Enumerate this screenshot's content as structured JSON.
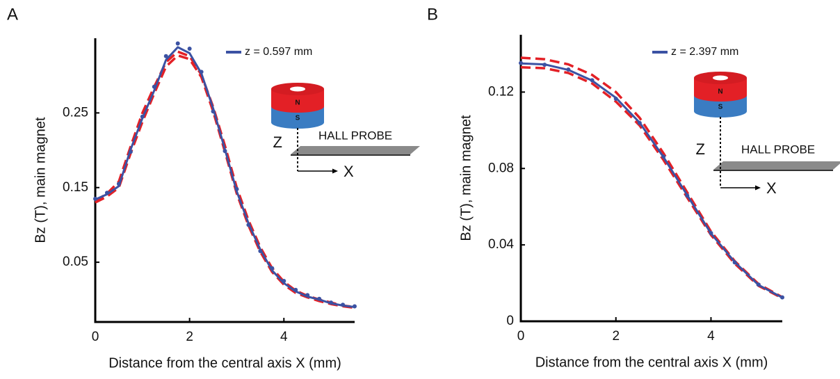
{
  "chart_data": [
    {
      "type": "line",
      "panel": "A",
      "xlabel": "Distance from the central axis X (mm)",
      "ylabel": "Bz (T), main magnet",
      "x": [
        0,
        0.25,
        0.5,
        0.75,
        1,
        1.25,
        1.5,
        1.75,
        2,
        2.25,
        2.5,
        2.75,
        3,
        3.25,
        3.5,
        3.75,
        4,
        4.25,
        4.5,
        4.75,
        5,
        5.25,
        5.5
      ],
      "xlim": [
        0,
        5.5
      ],
      "xticks": [
        0,
        2,
        4
      ],
      "ylim": [
        -0.03,
        0.35
      ],
      "yticks": [
        0.05,
        0.15,
        0.25
      ],
      "legend": "upper right",
      "series": [
        {
          "name": "z = 0.597 mm",
          "color": "#3b52a3",
          "style": "line",
          "values": [
            0.134,
            0.141,
            0.152,
            0.201,
            0.243,
            0.28,
            0.321,
            0.338,
            0.33,
            0.303,
            0.256,
            0.201,
            0.145,
            0.102,
            0.067,
            0.039,
            0.022,
            0.011,
            0.004,
            0,
            -0.005,
            -0.008,
            -0.01
          ]
        },
        {
          "color": "#3b52a3",
          "style": "markers",
          "values": [
            0.135,
            0.143,
            0.155,
            0.198,
            0.245,
            0.285,
            0.326,
            0.343,
            0.336,
            0.305,
            0.252,
            0.199,
            0.148,
            0.1,
            0.065,
            0.042,
            0.025,
            0.013,
            0.006,
            0.001,
            -0.004,
            -0.007,
            -0.009
          ]
        },
        {
          "color": "#e32026",
          "style": "dashed",
          "values": [
            0.132,
            0.142,
            0.158,
            0.205,
            0.25,
            0.285,
            0.318,
            0.332,
            0.326,
            0.301,
            0.258,
            0.206,
            0.15,
            0.106,
            0.07,
            0.042,
            0.024,
            0.012,
            0.005,
            0,
            -0.004,
            -0.008,
            -0.01
          ]
        },
        {
          "color": "#e32026",
          "style": "dashed",
          "values": [
            0.13,
            0.138,
            0.15,
            0.196,
            0.238,
            0.276,
            0.312,
            0.327,
            0.322,
            0.298,
            0.252,
            0.198,
            0.142,
            0.099,
            0.064,
            0.037,
            0.02,
            0.009,
            0.003,
            -0.002,
            -0.006,
            -0.009,
            -0.011
          ]
        }
      ],
      "annotations": {
        "north": "N",
        "south": "S",
        "z_axis": "Z",
        "x_axis": "X",
        "probe": "HALL PROBE"
      }
    },
    {
      "type": "line",
      "panel": "B",
      "xlabel": "Distance from the central axis X (mm)",
      "ylabel": "Bz (T), main magnet",
      "x": [
        0,
        0.5,
        1,
        1.5,
        2,
        2.5,
        3,
        3.5,
        4,
        4.5,
        5,
        5.5
      ],
      "xlim": [
        0,
        5.5
      ],
      "xticks": [
        0,
        2,
        4
      ],
      "ylim": [
        0,
        0.15
      ],
      "yticks": [
        0,
        0.04,
        0.08,
        0.12
      ],
      "legend": "upper right",
      "series": [
        {
          "name": "z = 2.397 mm",
          "color": "#3b52a3",
          "style": "line",
          "values": [
            0.135,
            0.1345,
            0.1316,
            0.126,
            0.117,
            0.104,
            0.086,
            0.066,
            0.046,
            0.031,
            0.019,
            0.0124
          ]
        },
        {
          "color": "#3b52a3",
          "style": "markers",
          "values": [
            0.1352,
            0.1343,
            0.1318,
            0.1262,
            0.1165,
            0.1038,
            0.0862,
            0.0658,
            0.0462,
            0.0308,
            0.0192,
            0.0125
          ]
        },
        {
          "color": "#e32026",
          "style": "dashed",
          "values": [
            0.138,
            0.1372,
            0.1345,
            0.129,
            0.12,
            0.1065,
            0.088,
            0.0675,
            0.047,
            0.0315,
            0.0195,
            0.0126
          ]
        },
        {
          "color": "#e32026",
          "style": "dashed",
          "values": [
            0.133,
            0.1325,
            0.13,
            0.1245,
            0.115,
            0.1025,
            0.0845,
            0.0648,
            0.0452,
            0.0302,
            0.0186,
            0.0121
          ]
        }
      ],
      "annotations": {
        "north": "N",
        "south": "S",
        "z_axis": "Z",
        "x_axis": "X",
        "probe": "HALL PROBE"
      }
    }
  ]
}
